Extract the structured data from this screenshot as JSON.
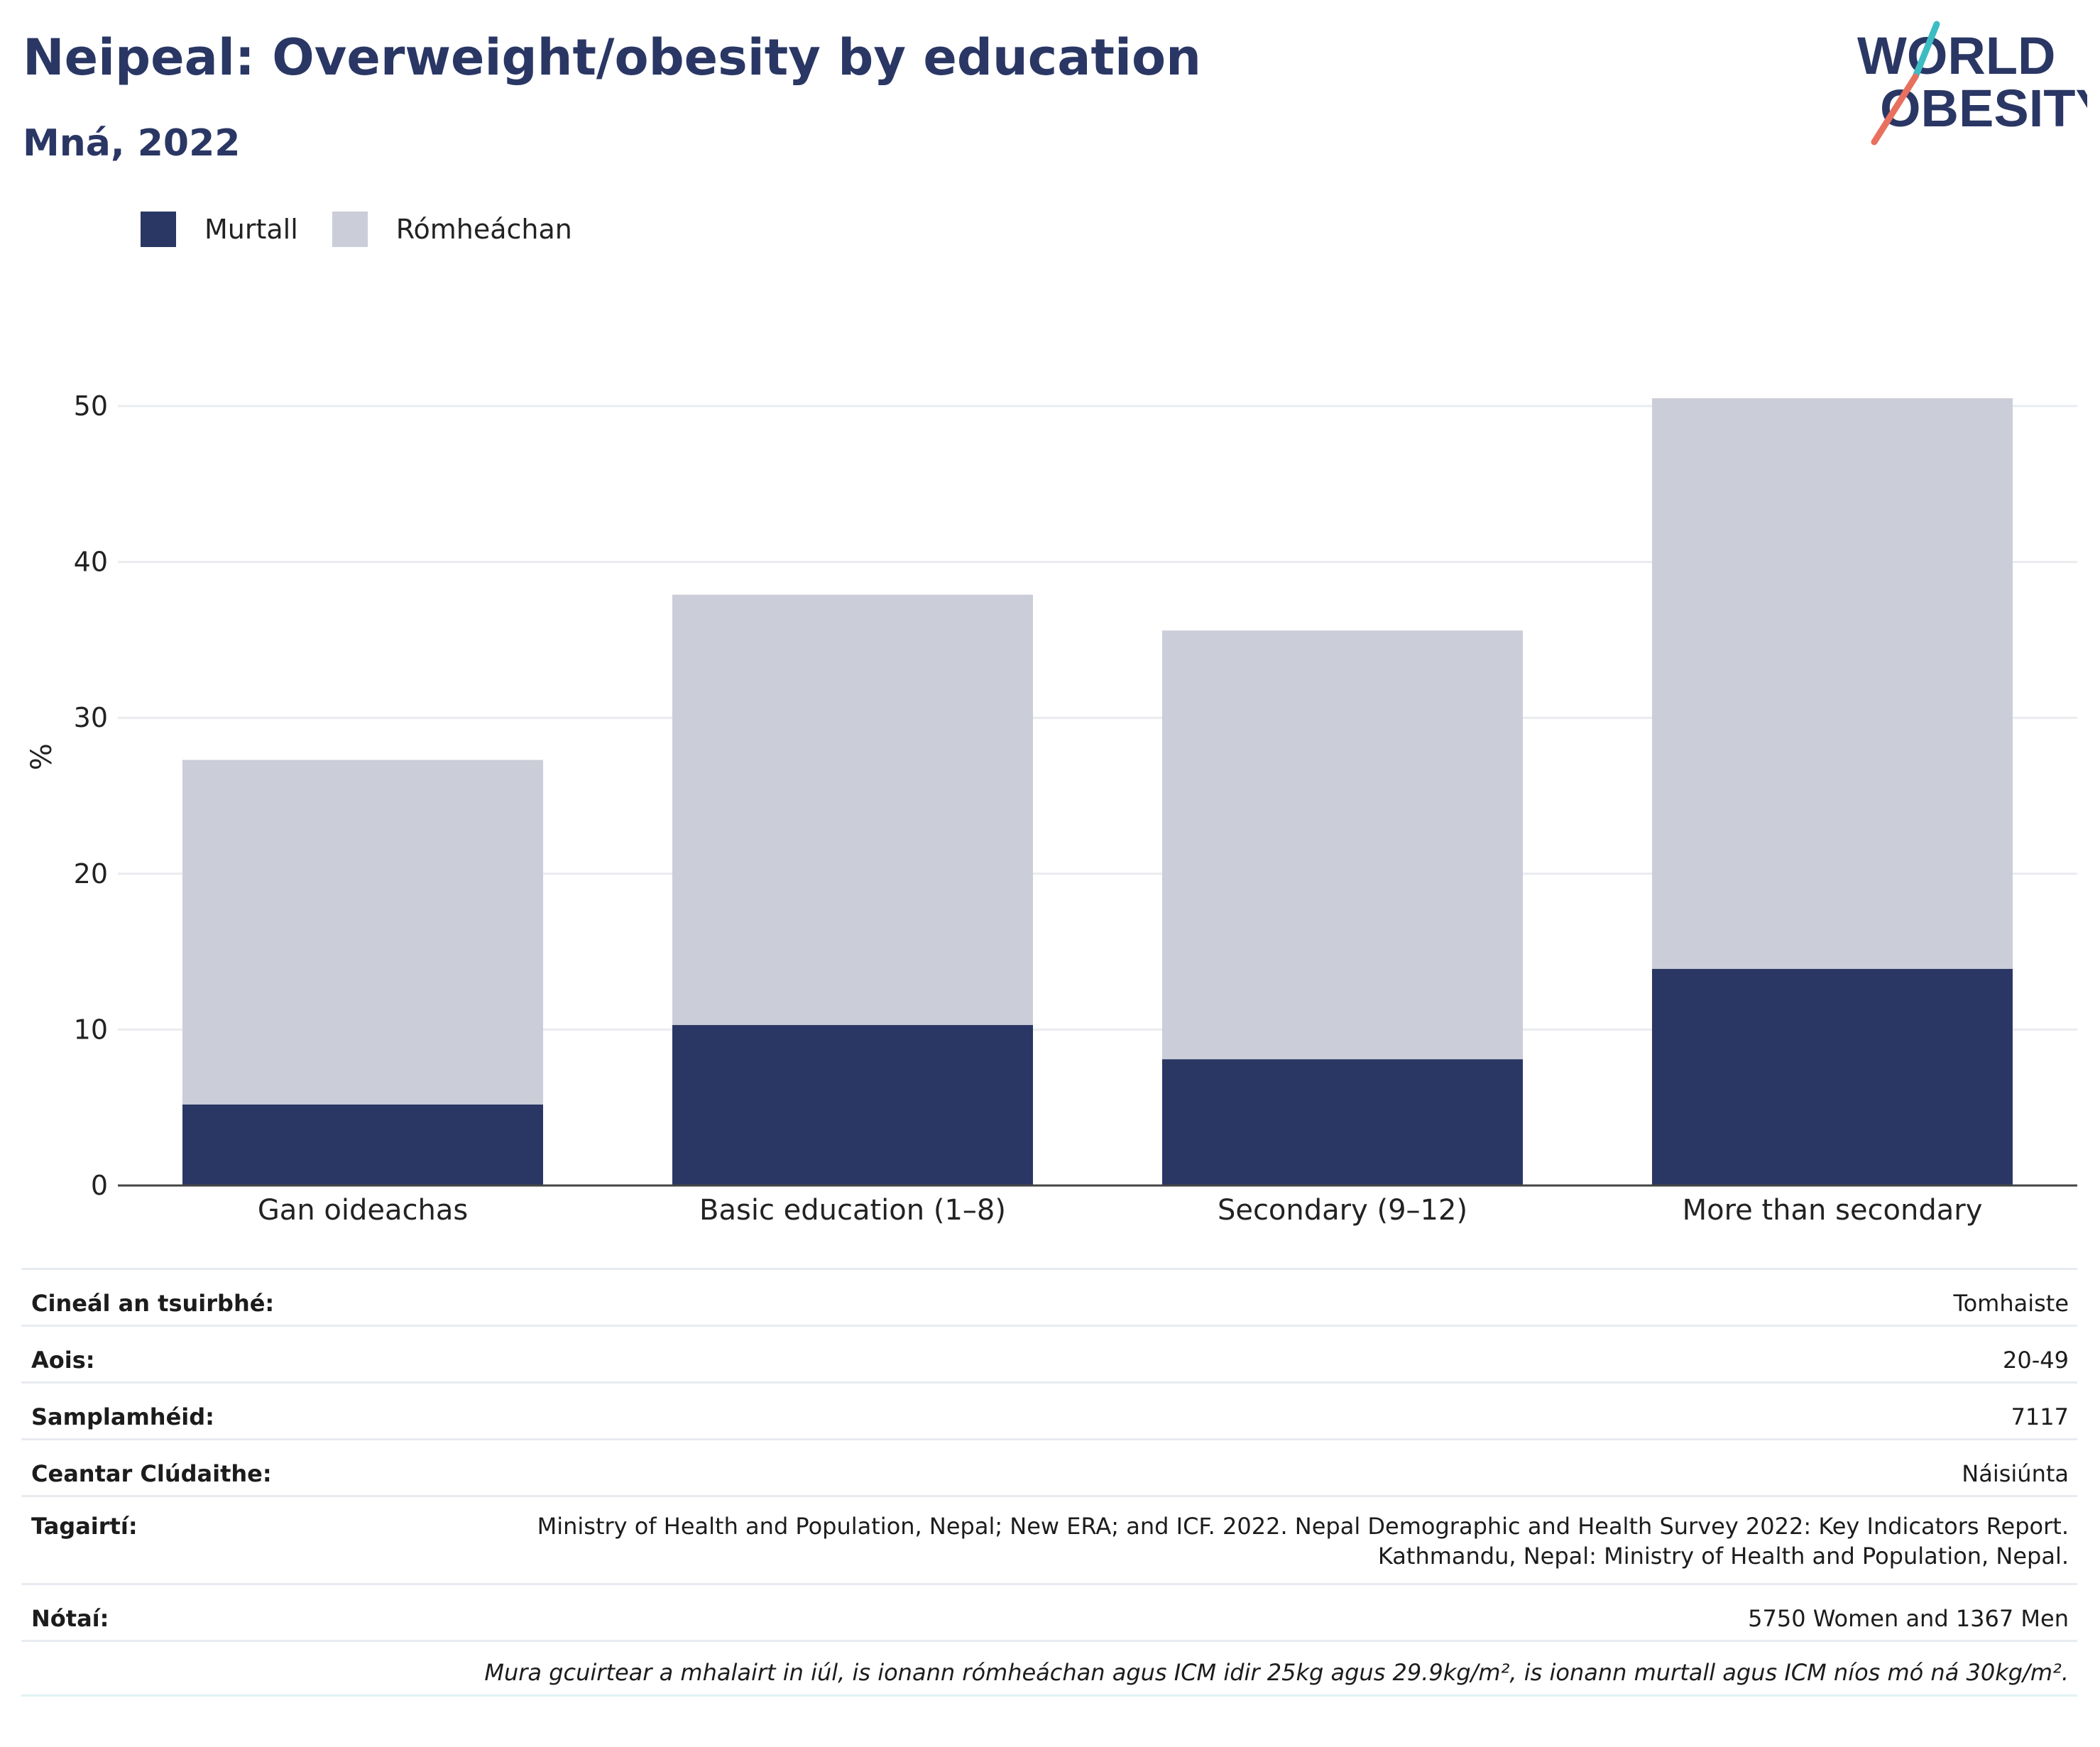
{
  "title": "Neipeal: Overweight/obesity by education",
  "subtitle": "Mná, 2022",
  "logo": {
    "line1": "WORLD",
    "line2": "OBESITY",
    "accent_colors": [
      "#3cbcc3",
      "#e8705f"
    ]
  },
  "colors": {
    "obese": "#2a3764",
    "overweight": "#cbcdd8",
    "title": "#2a3764"
  },
  "chart_data": {
    "type": "bar",
    "stacked": true,
    "categories": [
      "Gan oideachas",
      "Basic education (1–8)",
      "Secondary (9–12)",
      "More than secondary"
    ],
    "series": [
      {
        "name": "Murtall",
        "values": [
          5.2,
          10.3,
          8.1,
          13.9
        ]
      },
      {
        "name": "Rómheáchan",
        "values": [
          22.1,
          27.6,
          27.5,
          36.6
        ]
      }
    ],
    "ylabel": "%",
    "ylim": [
      0,
      55
    ],
    "yticks": [
      0,
      10,
      20,
      30,
      40,
      50
    ],
    "grid": true,
    "legend": "top-left"
  },
  "info": {
    "survey_type": {
      "label": "Cineál an tsuirbhé:",
      "value": "Tomhaiste"
    },
    "age": {
      "label": "Aois:",
      "value": "20-49"
    },
    "sample_size": {
      "label": "Samplamhéid:",
      "value": "7117"
    },
    "area": {
      "label": "Ceantar Clúdaithe:",
      "value": "Náisiúnta"
    },
    "references": {
      "label": "Tagairtí:",
      "line1": "Ministry of Health and Population, Nepal; New ERA; and ICF. 2022. Nepal Demographic and Health Survey 2022: Key Indicators Report.",
      "line2": "Kathmandu, Nepal: Ministry of Health and Population, Nepal."
    },
    "notes": {
      "label": "Nótaí:",
      "value": "5750 Women and 1367 Men"
    },
    "footnote": "Mura gcuirtear a mhalairt in iúl, is ionann rómheáchan agus ICM idir 25kg agus 29.9kg/m², is ionann murtall agus ICM níos mó ná 30kg/m²."
  }
}
